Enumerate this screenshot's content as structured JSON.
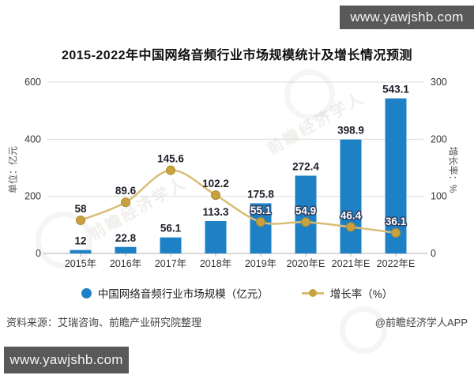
{
  "watermark_site": "www.yawjshb.com",
  "title": "2015-2022年中国网络音频行业市场规模统计及增长情况预测",
  "watermark_text": "前瞻经济学人",
  "footer": {
    "source": "资料来源：艾瑞咨询、前瞻产业研究院整理",
    "credit": "@前瞻经济学人APP"
  },
  "colors": {
    "bar": "#1e81c5",
    "line": "#d9bc74",
    "marker": "#c9a23d",
    "banner": "#59595a",
    "grid": "#dcdcdc",
    "axis": "#b0b0b0",
    "label_dark": "#1d1d28",
    "label_light": "#ffffff",
    "label_outline": "#2b3f63"
  },
  "chart_data": {
    "type": "combo-bar-line",
    "title": "2015-2022年中国网络音频行业市场规模统计及增长情况预测",
    "categories": [
      "2015年",
      "2016年",
      "2017年",
      "2018年",
      "2019年",
      "2020年E",
      "2021年E",
      "2022年E"
    ],
    "series": [
      {
        "name": "中国网络音频行业市场规模（亿元）",
        "type": "bar",
        "axis": "left",
        "values": [
          12,
          22.8,
          56.1,
          113.3,
          175.8,
          272.4,
          398.9,
          543.1
        ]
      },
      {
        "name": "增长率（%）",
        "type": "line",
        "axis": "right",
        "values": [
          58,
          89.6,
          145.6,
          102.2,
          55.1,
          54.9,
          46.4,
          36.1
        ]
      }
    ],
    "left_axis": {
      "label": "单位：亿元",
      "min": 0,
      "max": 600,
      "ticks": [
        0,
        200,
        400,
        600
      ]
    },
    "right_axis": {
      "label": "增长率：%",
      "min": 0,
      "max": 300,
      "ticks": [
        0,
        100,
        200,
        300
      ]
    },
    "grid": true,
    "legend_position": "bottom"
  }
}
